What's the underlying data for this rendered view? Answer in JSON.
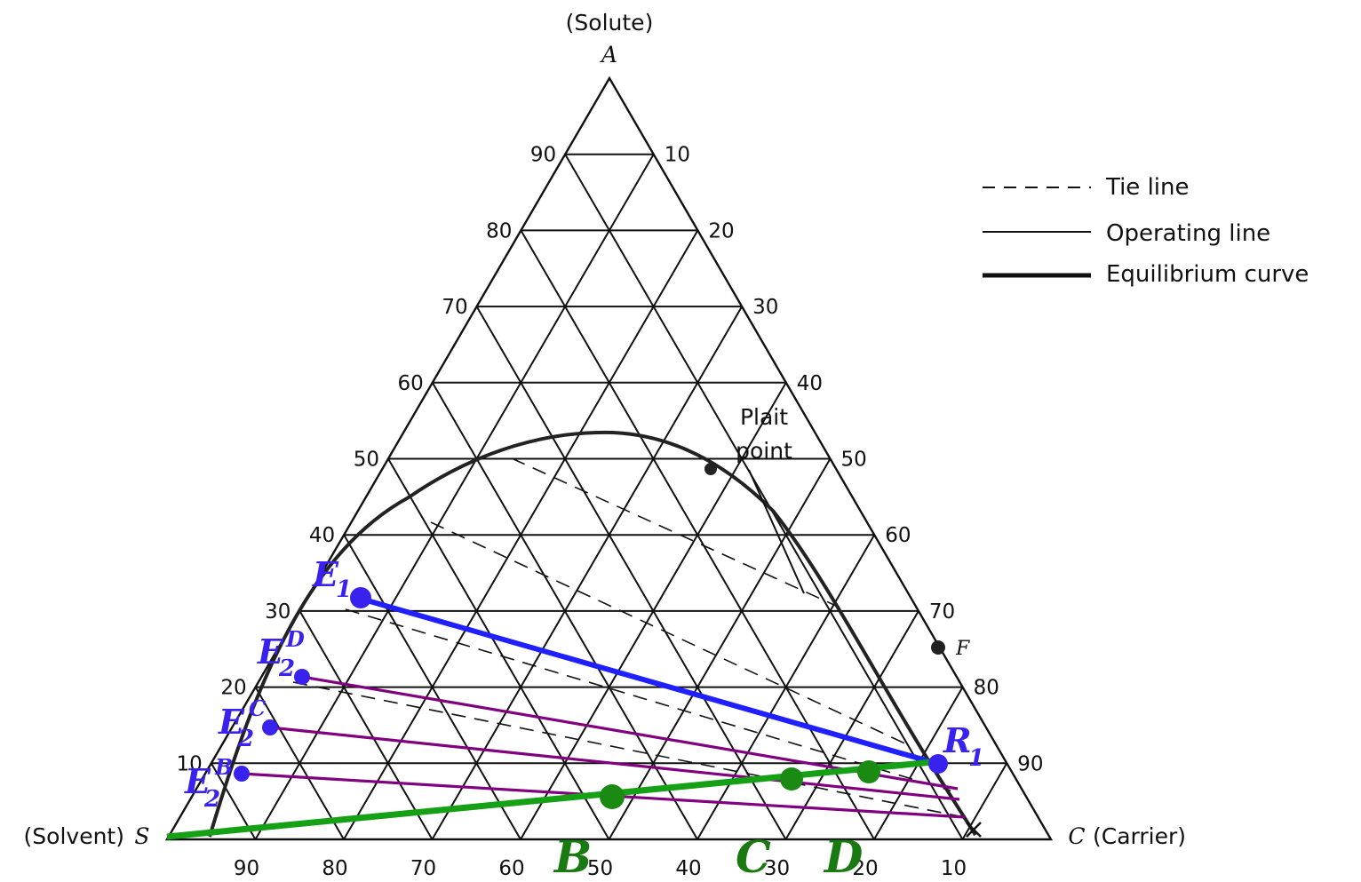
{
  "vertices": {
    "top_name": "(Solute)",
    "top_letter": "A",
    "left_name": "(Solvent)",
    "left_letter": "S",
    "right_letter": "C",
    "right_name": "(Carrier)"
  },
  "ticks": {
    "left": [
      "90",
      "80",
      "70",
      "60",
      "50",
      "40",
      "30",
      "20",
      "10"
    ],
    "right": [
      "10",
      "20",
      "30",
      "40",
      "50",
      "60",
      "70",
      "80",
      "90"
    ],
    "bottom": [
      "90",
      "80",
      "70",
      "60",
      "50",
      "40",
      "30",
      "20",
      "10"
    ]
  },
  "legend": {
    "tie_line": "Tie line",
    "operating_line": "Operating line",
    "equilibrium_curve": "Equilibrium curve"
  },
  "annotations": {
    "plait_line1": "Plait",
    "plait_line2": "point",
    "feed": "F"
  },
  "points": {
    "E1_main": "E",
    "E1_sub": "1",
    "E2D_main": "E",
    "E2D_sub": "2",
    "E2D_sup": "D",
    "E2C_main": "E",
    "E2C_sub": "2",
    "E2C_sup": "C",
    "E2B_main": "E",
    "E2B_sub": "2",
    "E2B_sup": "B",
    "R1_main": "R",
    "R1_sub": "1",
    "B": "B",
    "C": "C",
    "D": "D"
  },
  "colors": {
    "blue": "#2020ff",
    "purple": "#800080",
    "green": "#16a016",
    "marker_blue": "#3a22ee",
    "marker_green": "#1a8a12"
  }
}
